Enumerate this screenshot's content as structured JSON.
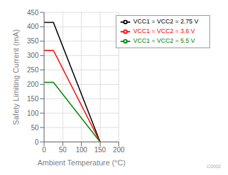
{
  "chart_data": {
    "type": "line",
    "x": [
      0,
      25,
      150
    ],
    "series": [
      {
        "name": "VCC1 = VCC2 = 2.75 V",
        "color": "#000000",
        "values": [
          415,
          415,
          0
        ]
      },
      {
        "name": "VCC1 = VCC2 = 3.6 V",
        "color": "#ff0000",
        "values": [
          318,
          318,
          0
        ]
      },
      {
        "name": "VCC1 = VCC2 = 5.5 V",
        "color": "#008000",
        "values": [
          207,
          207,
          0
        ]
      }
    ],
    "x_label": "Ambient Temperature (°C)",
    "y_label": "Safety Limiting Current (mA)",
    "xlim": [
      0,
      200
    ],
    "ylim": [
      0,
      450
    ],
    "xticks": [
      0,
      50,
      100,
      150,
      200
    ],
    "yticks": [
      0,
      50,
      100,
      150,
      200,
      250,
      300,
      350,
      400,
      450
    ],
    "grid": true,
    "legend": "upper right",
    "annotations": [
      "C0002"
    ]
  }
}
